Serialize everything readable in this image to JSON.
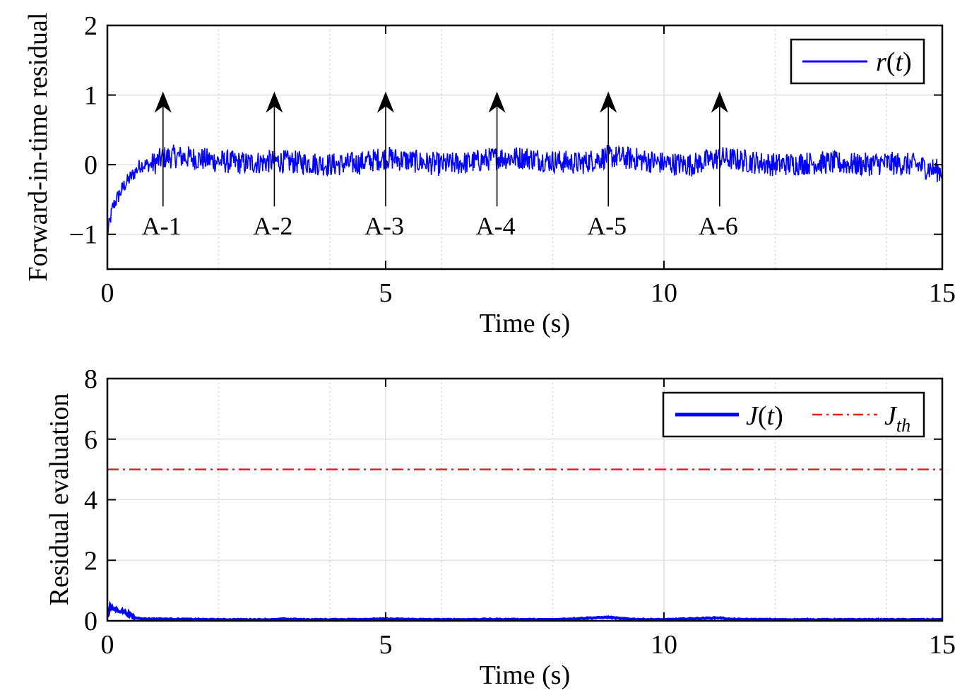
{
  "chart_data": [
    {
      "type": "line",
      "xlabel": "Time (s)",
      "ylabel": "Forward-in-time residual",
      "xlim": [
        0,
        15
      ],
      "ylim": [
        -1.5,
        2
      ],
      "xticks": [
        "0",
        "5",
        "10",
        "15"
      ],
      "yticks": [
        "2",
        "1",
        "0",
        "−1"
      ],
      "grid": true,
      "legend_position": "top-right",
      "series": [
        {
          "name": "r(t)",
          "color": "#0000ff",
          "x": [
            0,
            0.1,
            0.2,
            0.3,
            0.4,
            0.5,
            0.6,
            0.8,
            1.0,
            1.2,
            1.5,
            2,
            2.5,
            3,
            3.5,
            4,
            4.5,
            5,
            5.5,
            6,
            6.5,
            7,
            7.5,
            8,
            8.5,
            9,
            9.5,
            10,
            10.5,
            11,
            11.5,
            12,
            12.5,
            13,
            13.5,
            14,
            14.5,
            15
          ],
          "y": [
            -1.0,
            -0.6,
            -0.45,
            -0.3,
            -0.2,
            -0.1,
            0.0,
            0.0,
            0.1,
            0.12,
            0.1,
            0.05,
            0.02,
            0.05,
            0.03,
            0.0,
            0.02,
            0.1,
            0.05,
            0.0,
            0.03,
            0.1,
            0.1,
            0.05,
            0.02,
            0.12,
            0.08,
            0.02,
            0.0,
            0.1,
            0.05,
            0.0,
            0.02,
            0.03,
            0.0,
            0.02,
            0.0,
            -0.1
          ]
        }
      ],
      "annotations": [
        {
          "label": "A-1",
          "x": 1
        },
        {
          "label": "A-2",
          "x": 3
        },
        {
          "label": "A-3",
          "x": 5
        },
        {
          "label": "A-4",
          "x": 7
        },
        {
          "label": "A-5",
          "x": 9
        },
        {
          "label": "A-6",
          "x": 11
        }
      ]
    },
    {
      "type": "line",
      "xlabel": "Time (s)",
      "ylabel": "Residual evaluation",
      "xlim": [
        0,
        15
      ],
      "ylim": [
        0,
        8
      ],
      "xticks": [
        "0",
        "5",
        "10",
        "15"
      ],
      "yticks": [
        "8",
        "6",
        "4",
        "2",
        "0"
      ],
      "grid": true,
      "legend_position": "top-right",
      "series": [
        {
          "name": "J(t)",
          "color": "#0000ff",
          "x": [
            0,
            0.05,
            0.1,
            0.2,
            0.3,
            0.4,
            0.5,
            0.7,
            1,
            2,
            3,
            3.2,
            3.5,
            4,
            5,
            6,
            7,
            8,
            9,
            9.2,
            9.5,
            10,
            11,
            11.2,
            12,
            13,
            14,
            15
          ],
          "y": [
            0.1,
            0.45,
            0.4,
            0.35,
            0.3,
            0.2,
            0.1,
            0.06,
            0.06,
            0.04,
            0.04,
            0.06,
            0.04,
            0.04,
            0.06,
            0.04,
            0.05,
            0.04,
            0.12,
            0.08,
            0.05,
            0.04,
            0.1,
            0.05,
            0.04,
            0.04,
            0.04,
            0.04
          ]
        },
        {
          "name": "J_th",
          "color": "#e8201a",
          "x": [
            0,
            15
          ],
          "y": [
            5,
            5
          ]
        }
      ]
    }
  ],
  "legend_top": {
    "label_prefix": "r(",
    "label_var": "t",
    "label_suffix": ")"
  },
  "legend_bottom": {
    "j_prefix": "J(",
    "j_var": "t",
    "j_suffix": ")",
    "th_base": "J",
    "th_sub": "th"
  }
}
